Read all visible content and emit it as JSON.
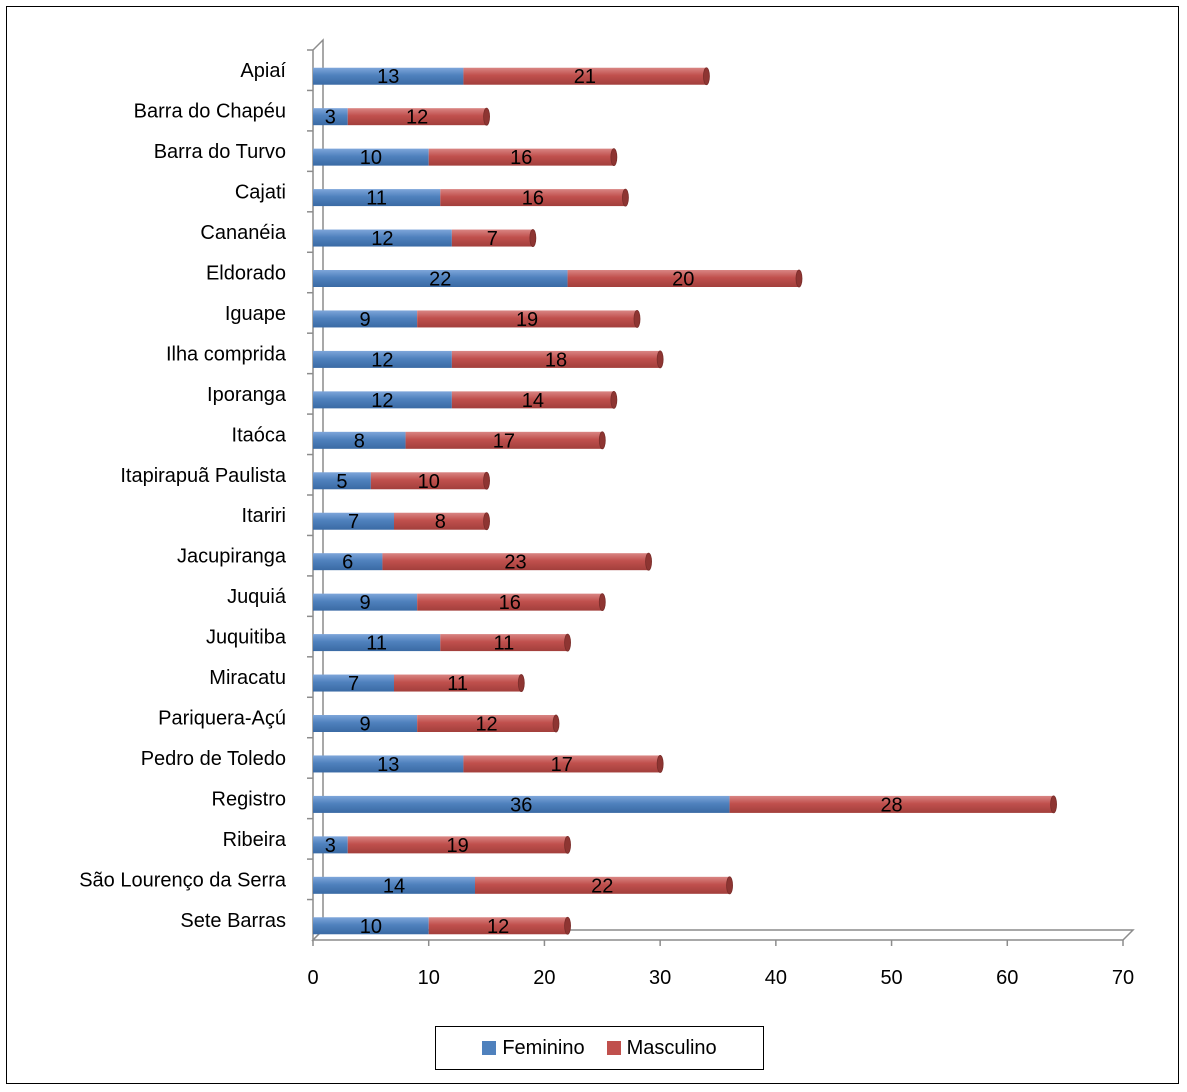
{
  "chart_data": {
    "type": "bar",
    "orientation": "horizontal",
    "stacked": true,
    "title": "",
    "xlabel": "",
    "ylabel": "",
    "xlim": [
      0,
      70
    ],
    "xticks": [
      0,
      10,
      20,
      30,
      40,
      50,
      60,
      70
    ],
    "grid": false,
    "legend_position": "bottom",
    "categories": [
      "Apiaí",
      "Barra do Chapéu",
      "Barra do Turvo",
      "Cajati",
      "Cananéia",
      "Eldorado",
      "Iguape",
      "Ilha comprida",
      "Iporanga",
      "Itaóca",
      "Itapirapuã Paulista",
      "Itariri",
      "Jacupiranga",
      "Juquiá",
      "Juquitiba",
      "Miracatu",
      "Pariquera-Açú",
      "Pedro de Toledo",
      "Registro",
      "Ribeira",
      "São Lourenço da Serra",
      "Sete Barras"
    ],
    "series": [
      {
        "name": "Feminino",
        "color": "#4F81BD",
        "values": [
          13,
          3,
          10,
          11,
          12,
          22,
          9,
          12,
          12,
          8,
          5,
          7,
          6,
          9,
          11,
          7,
          9,
          13,
          36,
          3,
          14,
          10
        ]
      },
      {
        "name": "Masculino",
        "color": "#C0504D",
        "values": [
          21,
          12,
          16,
          16,
          7,
          20,
          19,
          18,
          14,
          17,
          10,
          8,
          23,
          16,
          11,
          11,
          12,
          17,
          28,
          19,
          22,
          12
        ]
      }
    ]
  }
}
